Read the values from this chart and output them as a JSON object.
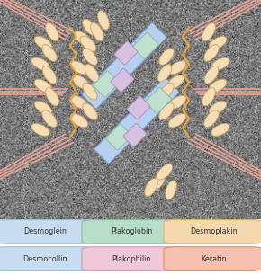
{
  "legend_items": [
    {
      "label": "Desmoglein",
      "bg": "#c8ddf2",
      "border": "#9abcd8",
      "row": 0,
      "col": 0
    },
    {
      "label": "Plakoglobin",
      "bg": "#b8ddc8",
      "border": "#88bba0",
      "row": 0,
      "col": 1
    },
    {
      "label": "Desmoplakin",
      "bg": "#f5d8b0",
      "border": "#d8b070",
      "row": 0,
      "col": 2
    },
    {
      "label": "Desmocollin",
      "bg": "#c8ddf2",
      "border": "#9abcd8",
      "row": 1,
      "col": 0
    },
    {
      "label": "Plakophilin",
      "bg": "#f0c8d8",
      "border": "#d09ab8",
      "row": 1,
      "col": 1
    },
    {
      "label": "Keratin",
      "bg": "#f5c0b0",
      "border": "#d8906878",
      "row": 1,
      "col": 2
    }
  ],
  "background_color": "#ffffff",
  "colors": {
    "cadherin_fill": "#f5ddb5",
    "cadherin_edge": "#c8a060",
    "plakoglobin_fill": "#c0e0d0",
    "plakoglobin_edge": "#80b898",
    "plakophilin_fill": "#d8c0e0",
    "plakophilin_edge": "#a888c0",
    "desplakin_fill": "#b8d0ee",
    "desplakin_edge": "#7898c8",
    "keratin_color": "#f0a898",
    "membrane_color": "#e8a840"
  },
  "fig_width": 2.9,
  "fig_height": 3.05,
  "dpi": 100
}
